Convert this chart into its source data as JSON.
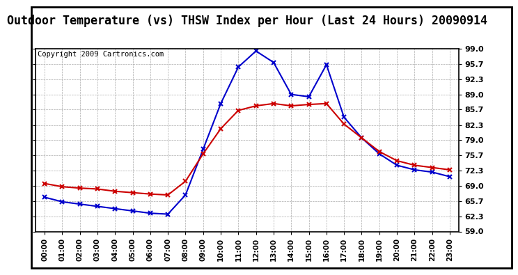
{
  "title": "Outdoor Temperature (vs) THSW Index per Hour (Last 24 Hours) 20090914",
  "copyright": "Copyright 2009 Cartronics.com",
  "hours": [
    0,
    1,
    2,
    3,
    4,
    5,
    6,
    7,
    8,
    9,
    10,
    11,
    12,
    13,
    14,
    15,
    16,
    17,
    18,
    19,
    20,
    21,
    22,
    23
  ],
  "red_temp": [
    69.5,
    68.8,
    68.5,
    68.3,
    67.8,
    67.5,
    67.2,
    67.0,
    70.0,
    76.0,
    81.5,
    85.5,
    86.5,
    87.0,
    86.5,
    86.8,
    87.0,
    82.5,
    79.5,
    76.5,
    74.5,
    73.5,
    73.0,
    72.5
  ],
  "blue_thsw": [
    66.5,
    65.5,
    65.0,
    64.5,
    64.0,
    63.5,
    63.0,
    62.8,
    67.0,
    77.0,
    87.0,
    95.0,
    98.5,
    96.0,
    89.0,
    88.5,
    95.5,
    84.0,
    79.5,
    76.0,
    73.5,
    72.5,
    72.0,
    71.0
  ],
  "ylim": [
    59.0,
    99.0
  ],
  "yticks": [
    59.0,
    62.3,
    65.7,
    69.0,
    72.3,
    75.7,
    79.0,
    82.3,
    85.7,
    89.0,
    92.3,
    95.7,
    99.0
  ],
  "bg_color": "#ffffff",
  "plot_bg_color": "#ffffff",
  "grid_color": "#aaaaaa",
  "red_color": "#cc0000",
  "blue_color": "#0000cc",
  "title_fontsize": 12,
  "copyright_fontsize": 7.5
}
